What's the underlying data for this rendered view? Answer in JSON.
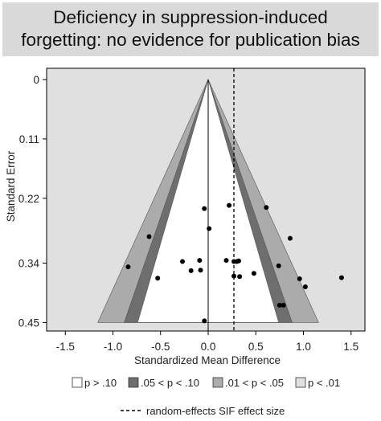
{
  "chart_data": {
    "type": "scatter",
    "subtype": "contour-enhanced funnel plot",
    "title_lines": [
      "Deficiency in suppression-induced",
      "forgetting: no evidence for publication bias"
    ],
    "xlabel": "Standardized Mean Difference",
    "ylabel": "Standard Error",
    "xlim": [
      -1.65,
      1.65
    ],
    "ylim": [
      0.45,
      0
    ],
    "y_reversed": true,
    "x_ticks": [
      -1.5,
      -1.0,
      -0.5,
      0.0,
      0.5,
      1.0,
      1.5
    ],
    "x_tick_labels": [
      "-1.5",
      "-1.0",
      "-0.5",
      "0.0",
      "0.5",
      "1.0",
      "1.5"
    ],
    "y_ticks": [
      0,
      0.11,
      0.22,
      0.34,
      0.45
    ],
    "y_tick_labels": [
      "0",
      "0.11",
      "0.22",
      "0.34",
      "0.45"
    ],
    "reference_line_x": 0.0,
    "effect_size_x": 0.27,
    "grid": false,
    "contours": [
      {
        "label": "p > .10",
        "z": 1.645,
        "color": "#ffffff"
      },
      {
        "label": ".05 < p < .10",
        "z": 1.96,
        "color": "#6e6e6e"
      },
      {
        "label": ".01 < p < .05",
        "z": 2.576,
        "color": "#ababab"
      },
      {
        "label": "p < .01",
        "z": null,
        "color": "#e0e0e0"
      }
    ],
    "points": [
      {
        "x": -0.04,
        "y": 0.239
      },
      {
        "x": 0.22,
        "y": 0.233
      },
      {
        "x": 0.61,
        "y": 0.237
      },
      {
        "x": 0.01,
        "y": 0.276
      },
      {
        "x": -0.62,
        "y": 0.291
      },
      {
        "x": 0.86,
        "y": 0.294
      },
      {
        "x": -0.84,
        "y": 0.347
      },
      {
        "x": -0.27,
        "y": 0.337
      },
      {
        "x": -0.09,
        "y": 0.335
      },
      {
        "x": -0.18,
        "y": 0.354
      },
      {
        "x": -0.08,
        "y": 0.353
      },
      {
        "x": 0.19,
        "y": 0.335
      },
      {
        "x": 0.27,
        "y": 0.337
      },
      {
        "x": 0.32,
        "y": 0.336
      },
      {
        "x": 0.3,
        "y": 0.337
      },
      {
        "x": 0.74,
        "y": 0.345
      },
      {
        "x": 0.48,
        "y": 0.359
      },
      {
        "x": 0.27,
        "y": 0.364
      },
      {
        "x": 0.33,
        "y": 0.365
      },
      {
        "x": -0.53,
        "y": 0.368
      },
      {
        "x": 0.96,
        "y": 0.369
      },
      {
        "x": 1.02,
        "y": 0.384
      },
      {
        "x": 1.4,
        "y": 0.367
      },
      {
        "x": 0.75,
        "y": 0.418
      },
      {
        "x": 0.79,
        "y": 0.418
      },
      {
        "x": -0.04,
        "y": 0.447
      }
    ],
    "legend": [
      {
        "label": "p > .10",
        "color": "#ffffff"
      },
      {
        "label": ".05 < p < .10",
        "color": "#6e6e6e"
      },
      {
        "label": ".01 < p < .05",
        "color": "#ababab"
      },
      {
        "label": "p < .01",
        "color": "#e0e0e0"
      }
    ],
    "legend_line_label": "random-effects SIF effect size",
    "colors": {
      "plot_background": "#e0e0e0",
      "frame": "#000000",
      "points": "#000000",
      "title_background": "#d9d9d9"
    }
  }
}
